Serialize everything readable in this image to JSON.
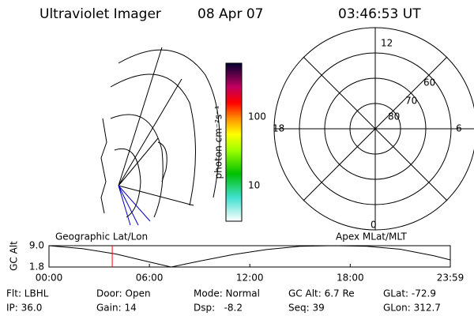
{
  "header": {
    "instrument": "Ultraviolet Imager",
    "date": "08 Apr 07",
    "time": "03:46:53 UT"
  },
  "colorbar": {
    "label": "photon cm⁻²s⁻¹",
    "ticks": [
      "100",
      "10"
    ]
  },
  "polar": {
    "mlt_labels": [
      "12",
      "18",
      "6",
      "0"
    ],
    "lat_labels": [
      "60",
      "70",
      "80"
    ]
  },
  "map_labels": {
    "left": "Geographic Lat/Lon",
    "right": "Apex MLat/MLT"
  },
  "chart_data": {
    "type": "line",
    "y_label": "GC Alt",
    "color": "#000000",
    "marker_color": "#ff0000",
    "marker_x": 3.78,
    "x": [
      0,
      2,
      4,
      6,
      7.3,
      9,
      11,
      13,
      15,
      17,
      19,
      21,
      23,
      23.98
    ],
    "values": [
      9.0,
      8.0,
      6.2,
      3.5,
      1.8,
      3.8,
      6.0,
      7.7,
      8.8,
      9.0,
      8.8,
      7.8,
      5.6,
      4.2
    ],
    "xlim": [
      0,
      23.98
    ],
    "xticks": [
      {
        "value": 0,
        "label": "00:00"
      },
      {
        "value": 6,
        "label": "06:00"
      },
      {
        "value": 12,
        "label": "12:00"
      },
      {
        "value": 18,
        "label": "18:00"
      },
      {
        "value": 23.98,
        "label": "23:59"
      }
    ],
    "ylim": [
      1.8,
      9.0
    ],
    "yticks": [
      {
        "value": 9,
        "label": "9.0"
      },
      1.8
    ]
  },
  "info": [
    [
      "Flt: LBHL",
      "Door: Open",
      "Mode: Normal",
      "GC Alt: 6.7 Re",
      "GLat: -72.9"
    ],
    [
      "IP: 36.0",
      "Gain: 14",
      "Dsp:   -8.2",
      "Seq: 39",
      "GLon: 312.7"
    ]
  ]
}
